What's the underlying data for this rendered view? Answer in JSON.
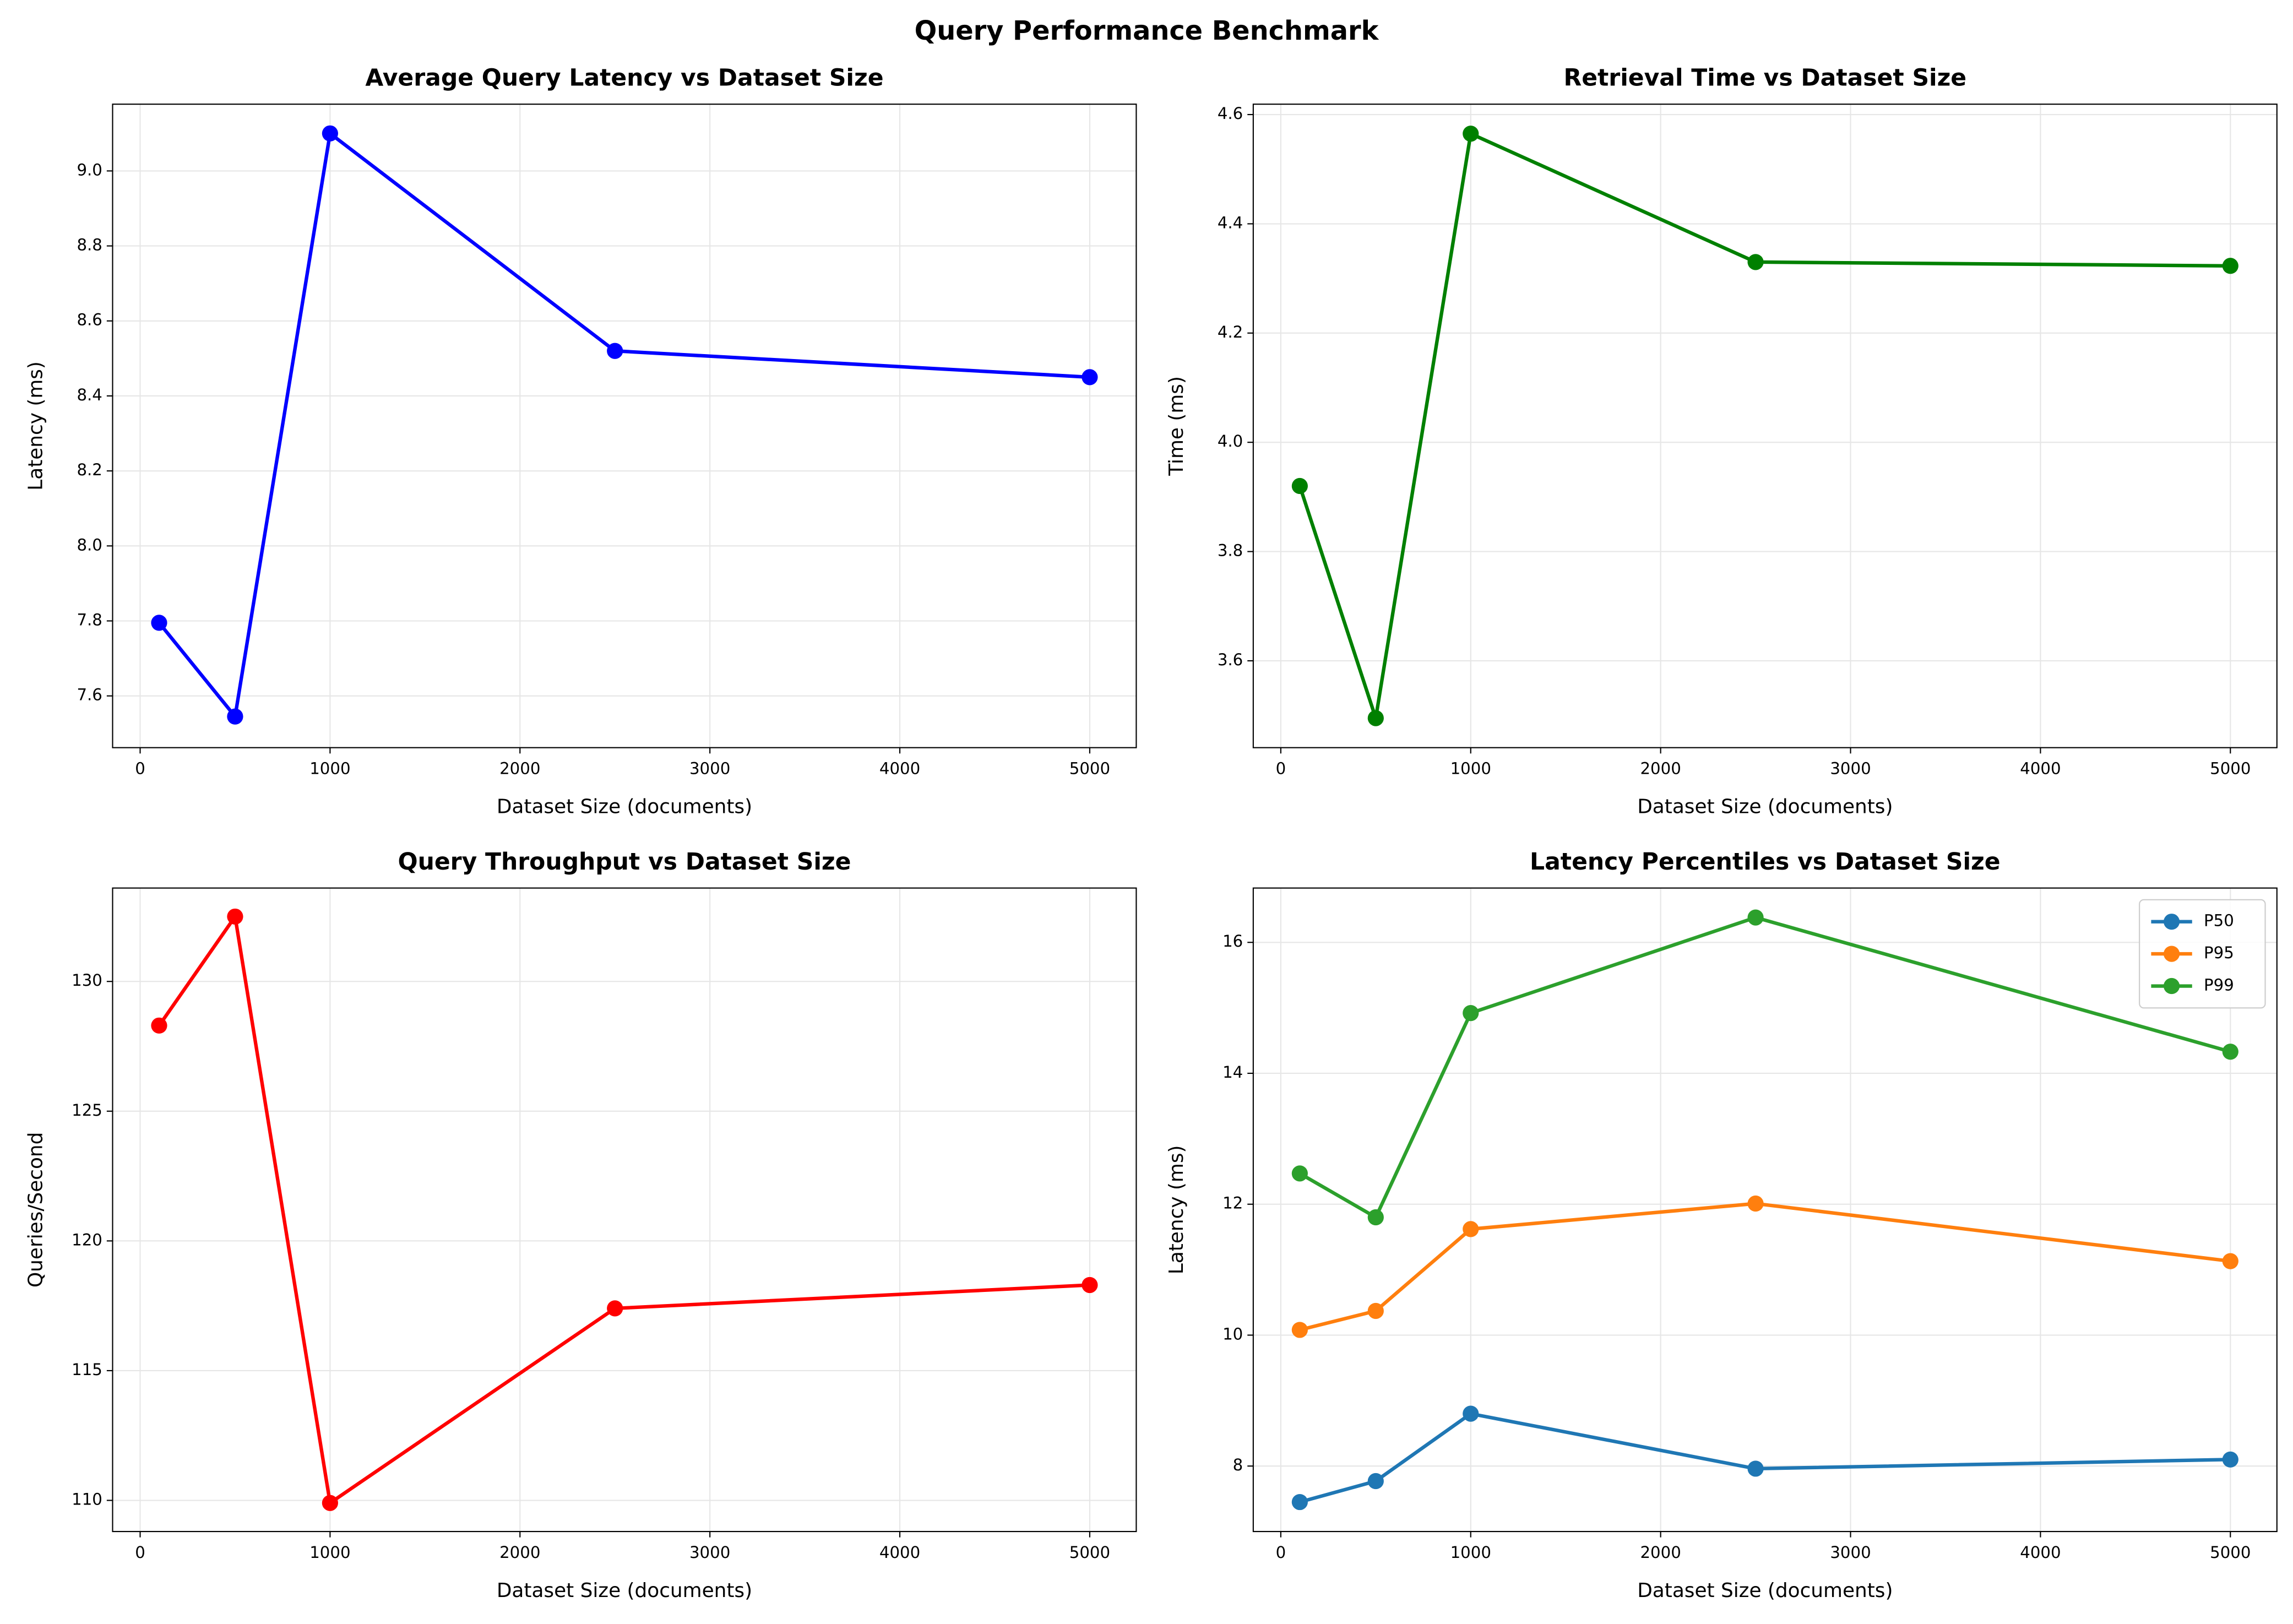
{
  "title": "Query Performance Benchmark",
  "chart_data": [
    {
      "type": "line",
      "title": "Average Query Latency vs Dataset Size",
      "xlabel": "Dataset Size (documents)",
      "ylabel": "Latency (ms)",
      "x": [
        100,
        500,
        1000,
        2500,
        5000
      ],
      "values": [
        7.795,
        7.545,
        9.1,
        8.52,
        8.45
      ],
      "color": "#0000ff",
      "xlim": [
        -145,
        5245
      ],
      "ylim": [
        7.462,
        9.178
      ],
      "xticks": [
        0,
        1000,
        2000,
        3000,
        4000,
        5000
      ],
      "yticks": [
        7.6,
        7.8,
        {
          "value": 8.0,
          "label": "8.0"
        },
        8.2,
        8.4,
        8.6,
        8.8,
        {
          "value": 9.0,
          "label": "9.0"
        }
      ],
      "grid": true
    },
    {
      "type": "line",
      "title": "Retrieval Time vs Dataset Size",
      "xlabel": "Dataset Size (documents)",
      "ylabel": "Time (ms)",
      "x": [
        100,
        500,
        1000,
        2500,
        5000
      ],
      "values": [
        3.92,
        3.495,
        4.565,
        4.33,
        4.323
      ],
      "color": "#008000",
      "xlim": [
        -145,
        5245
      ],
      "ylim": [
        3.441,
        4.619
      ],
      "xticks": [
        0,
        1000,
        2000,
        3000,
        4000,
        5000
      ],
      "yticks": [
        3.6,
        3.8,
        {
          "value": 4.0,
          "label": "4.0"
        },
        4.2,
        4.4,
        4.6
      ],
      "grid": true
    },
    {
      "type": "line",
      "title": "Query Throughput vs Dataset Size",
      "xlabel": "Dataset Size (documents)",
      "ylabel": "Queries/Second",
      "x": [
        100,
        500,
        1000,
        2500,
        5000
      ],
      "values": [
        128.3,
        132.5,
        109.9,
        117.4,
        118.3
      ],
      "color": "#ff0000",
      "xlim": [
        -145,
        5245
      ],
      "ylim": [
        108.8,
        133.6
      ],
      "xticks": [
        0,
        1000,
        2000,
        3000,
        4000,
        5000
      ],
      "yticks": [
        110,
        115,
        120,
        125,
        130
      ],
      "grid": true
    },
    {
      "type": "line",
      "title": "Latency Percentiles vs Dataset Size",
      "xlabel": "Dataset Size (documents)",
      "ylabel": "Latency (ms)",
      "x": [
        100,
        500,
        1000,
        2500,
        5000
      ],
      "series": [
        {
          "name": "P50",
          "color": "#1f77b4",
          "values": [
            7.45,
            7.77,
            8.8,
            7.96,
            8.1
          ]
        },
        {
          "name": "P95",
          "color": "#ff7f0e",
          "values": [
            10.08,
            10.37,
            11.62,
            12.01,
            11.13
          ]
        },
        {
          "name": "P99",
          "color": "#2ca02c",
          "values": [
            12.47,
            11.8,
            14.92,
            16.38,
            14.33
          ]
        }
      ],
      "xlim": [
        -145,
        5245
      ],
      "ylim": [
        7.0,
        16.83
      ],
      "xticks": [
        0,
        1000,
        2000,
        3000,
        4000,
        5000
      ],
      "yticks": [
        8,
        10,
        12,
        14,
        16
      ],
      "grid": true,
      "legend": "upper-right"
    }
  ]
}
